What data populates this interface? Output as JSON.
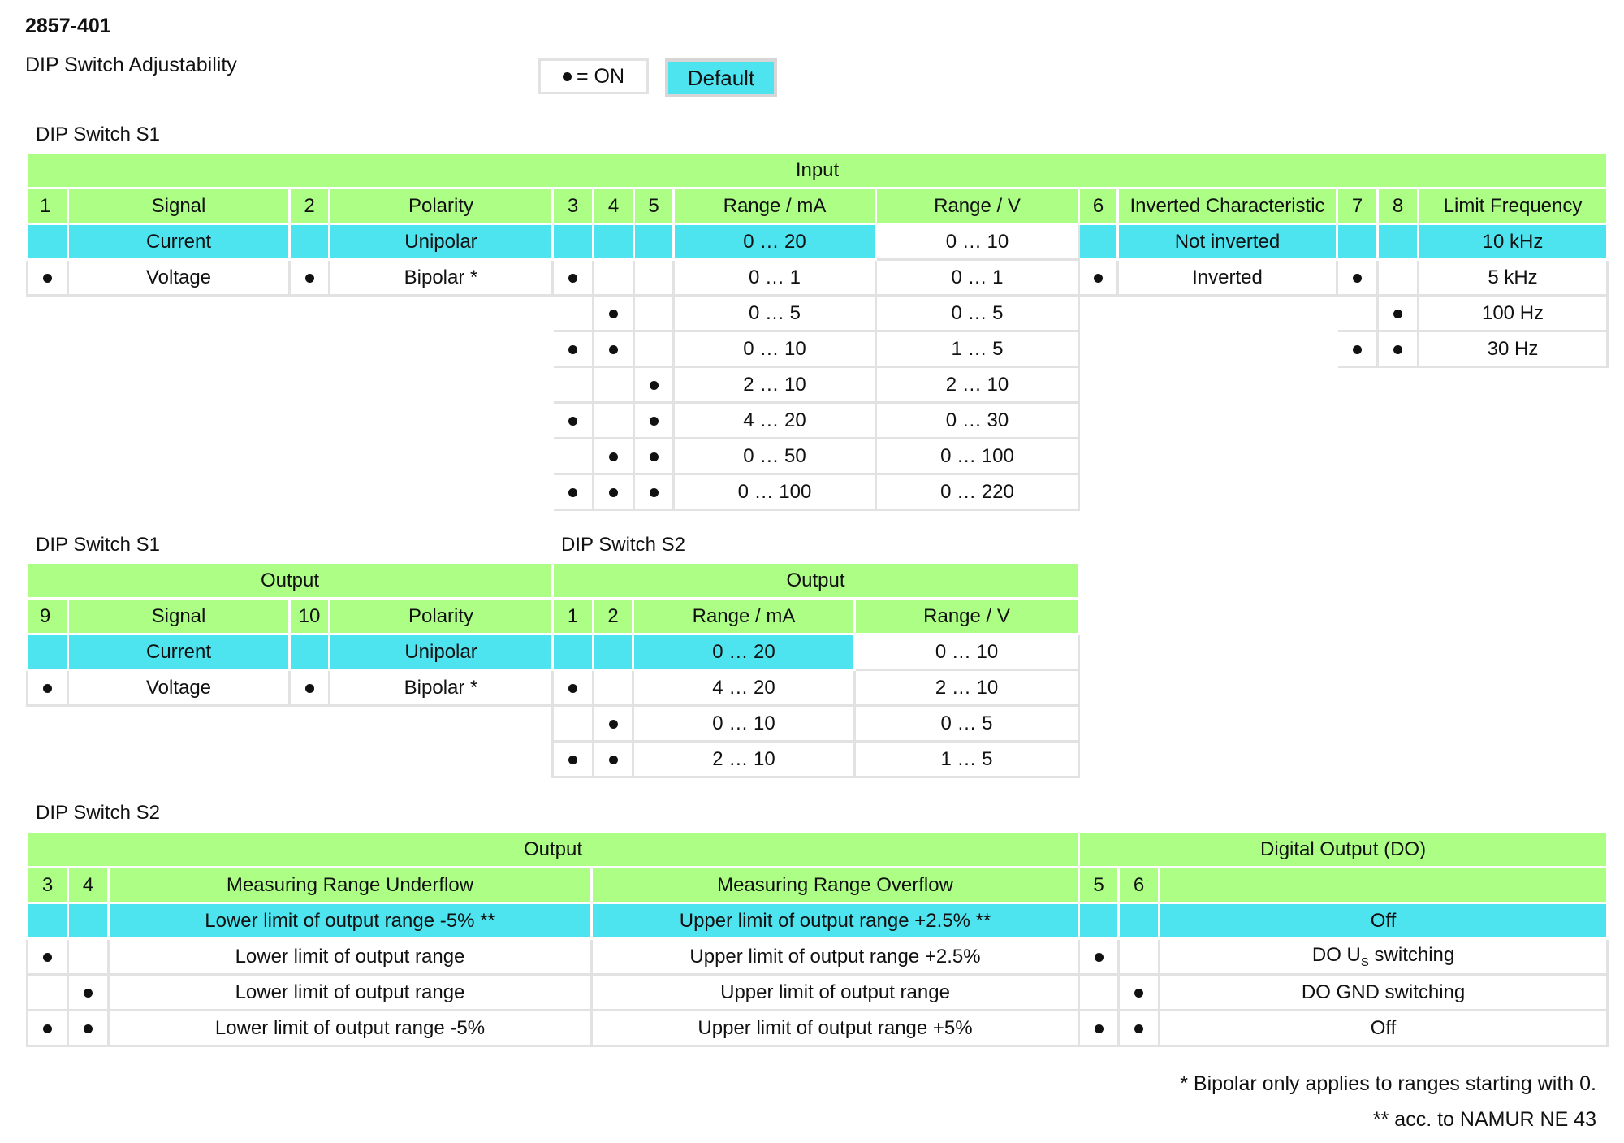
{
  "header": {
    "doc_id": "2857-401",
    "subtitle": "DIP Switch Adjustability"
  },
  "legend": {
    "on_symbol_text": "= ON",
    "default_label": "Default"
  },
  "s1_input": {
    "section_title": "DIP Switch S1",
    "group": "Input",
    "headers": [
      "1",
      "Signal",
      "2",
      "Polarity",
      "3",
      "4",
      "5",
      "Range / mA",
      "Range / V",
      "6",
      "Inverted Characteristic",
      "7",
      "8",
      "Limit Frequency"
    ],
    "signal": [
      "Current",
      "Voltage"
    ],
    "polarity": [
      "Unipolar",
      "Bipolar *"
    ],
    "range_ma": [
      "0 … 20",
      "0 … 1",
      "0 … 5",
      "0 … 10",
      "2 … 10",
      "4 … 20",
      "0 … 50",
      "0 … 100"
    ],
    "range_v": [
      "0 … 10",
      "0 … 1",
      "0 … 5",
      "1 … 5",
      "2 … 10",
      "0 … 30",
      "0 … 100",
      "0 … 220"
    ],
    "inverted": [
      "Not inverted",
      "Inverted"
    ],
    "limit_freq": [
      "10 kHz",
      "5 kHz",
      "100 Hz",
      "30 Hz"
    ]
  },
  "s1_output": {
    "section_title": "DIP Switch S1",
    "group": "Output",
    "headers": [
      "9",
      "Signal",
      "10",
      "Polarity"
    ],
    "signal": [
      "Current",
      "Voltage"
    ],
    "polarity": [
      "Unipolar",
      "Bipolar *"
    ]
  },
  "s2_output": {
    "section_title": "DIP Switch S2",
    "group": "Output",
    "headers": [
      "1",
      "2",
      "Range / mA",
      "Range / V"
    ],
    "range_ma": [
      "0 … 20",
      "4 … 20",
      "0 … 10",
      "2 … 10"
    ],
    "range_v": [
      "0 … 10",
      "2 … 10",
      "0 … 5",
      "1 … 5"
    ]
  },
  "s2_limits": {
    "section_title": "DIP Switch S2",
    "group_output": "Output",
    "group_do": "Digital Output (DO)",
    "headers": [
      "3",
      "4",
      "Measuring Range Underflow",
      "Measuring Range Overflow",
      "5",
      "6"
    ],
    "underflow": [
      "Lower limit of output range -5% **",
      "Lower limit of output range",
      "Lower limit of output range",
      "Lower limit of output range -5%"
    ],
    "overflow": [
      "Upper limit of output range +2.5% **",
      "Upper limit of output range +2.5%",
      "Upper limit of output range",
      "Upper limit of output range +5%"
    ],
    "do": {
      "off_default": "Off",
      "us_prefix": "DO U",
      "us_sub": "S",
      "us_suffix": " switching",
      "gnd": "DO GND switching",
      "off": "Off"
    }
  },
  "footnotes": {
    "bipolar": "* Bipolar only applies to ranges starting with 0.",
    "namur": "** acc. to NAMUR NE 43"
  },
  "colors": {
    "header_green": "#acfe84",
    "default_cyan": "#4de4f0",
    "border_gray": "#e2e2e2"
  }
}
